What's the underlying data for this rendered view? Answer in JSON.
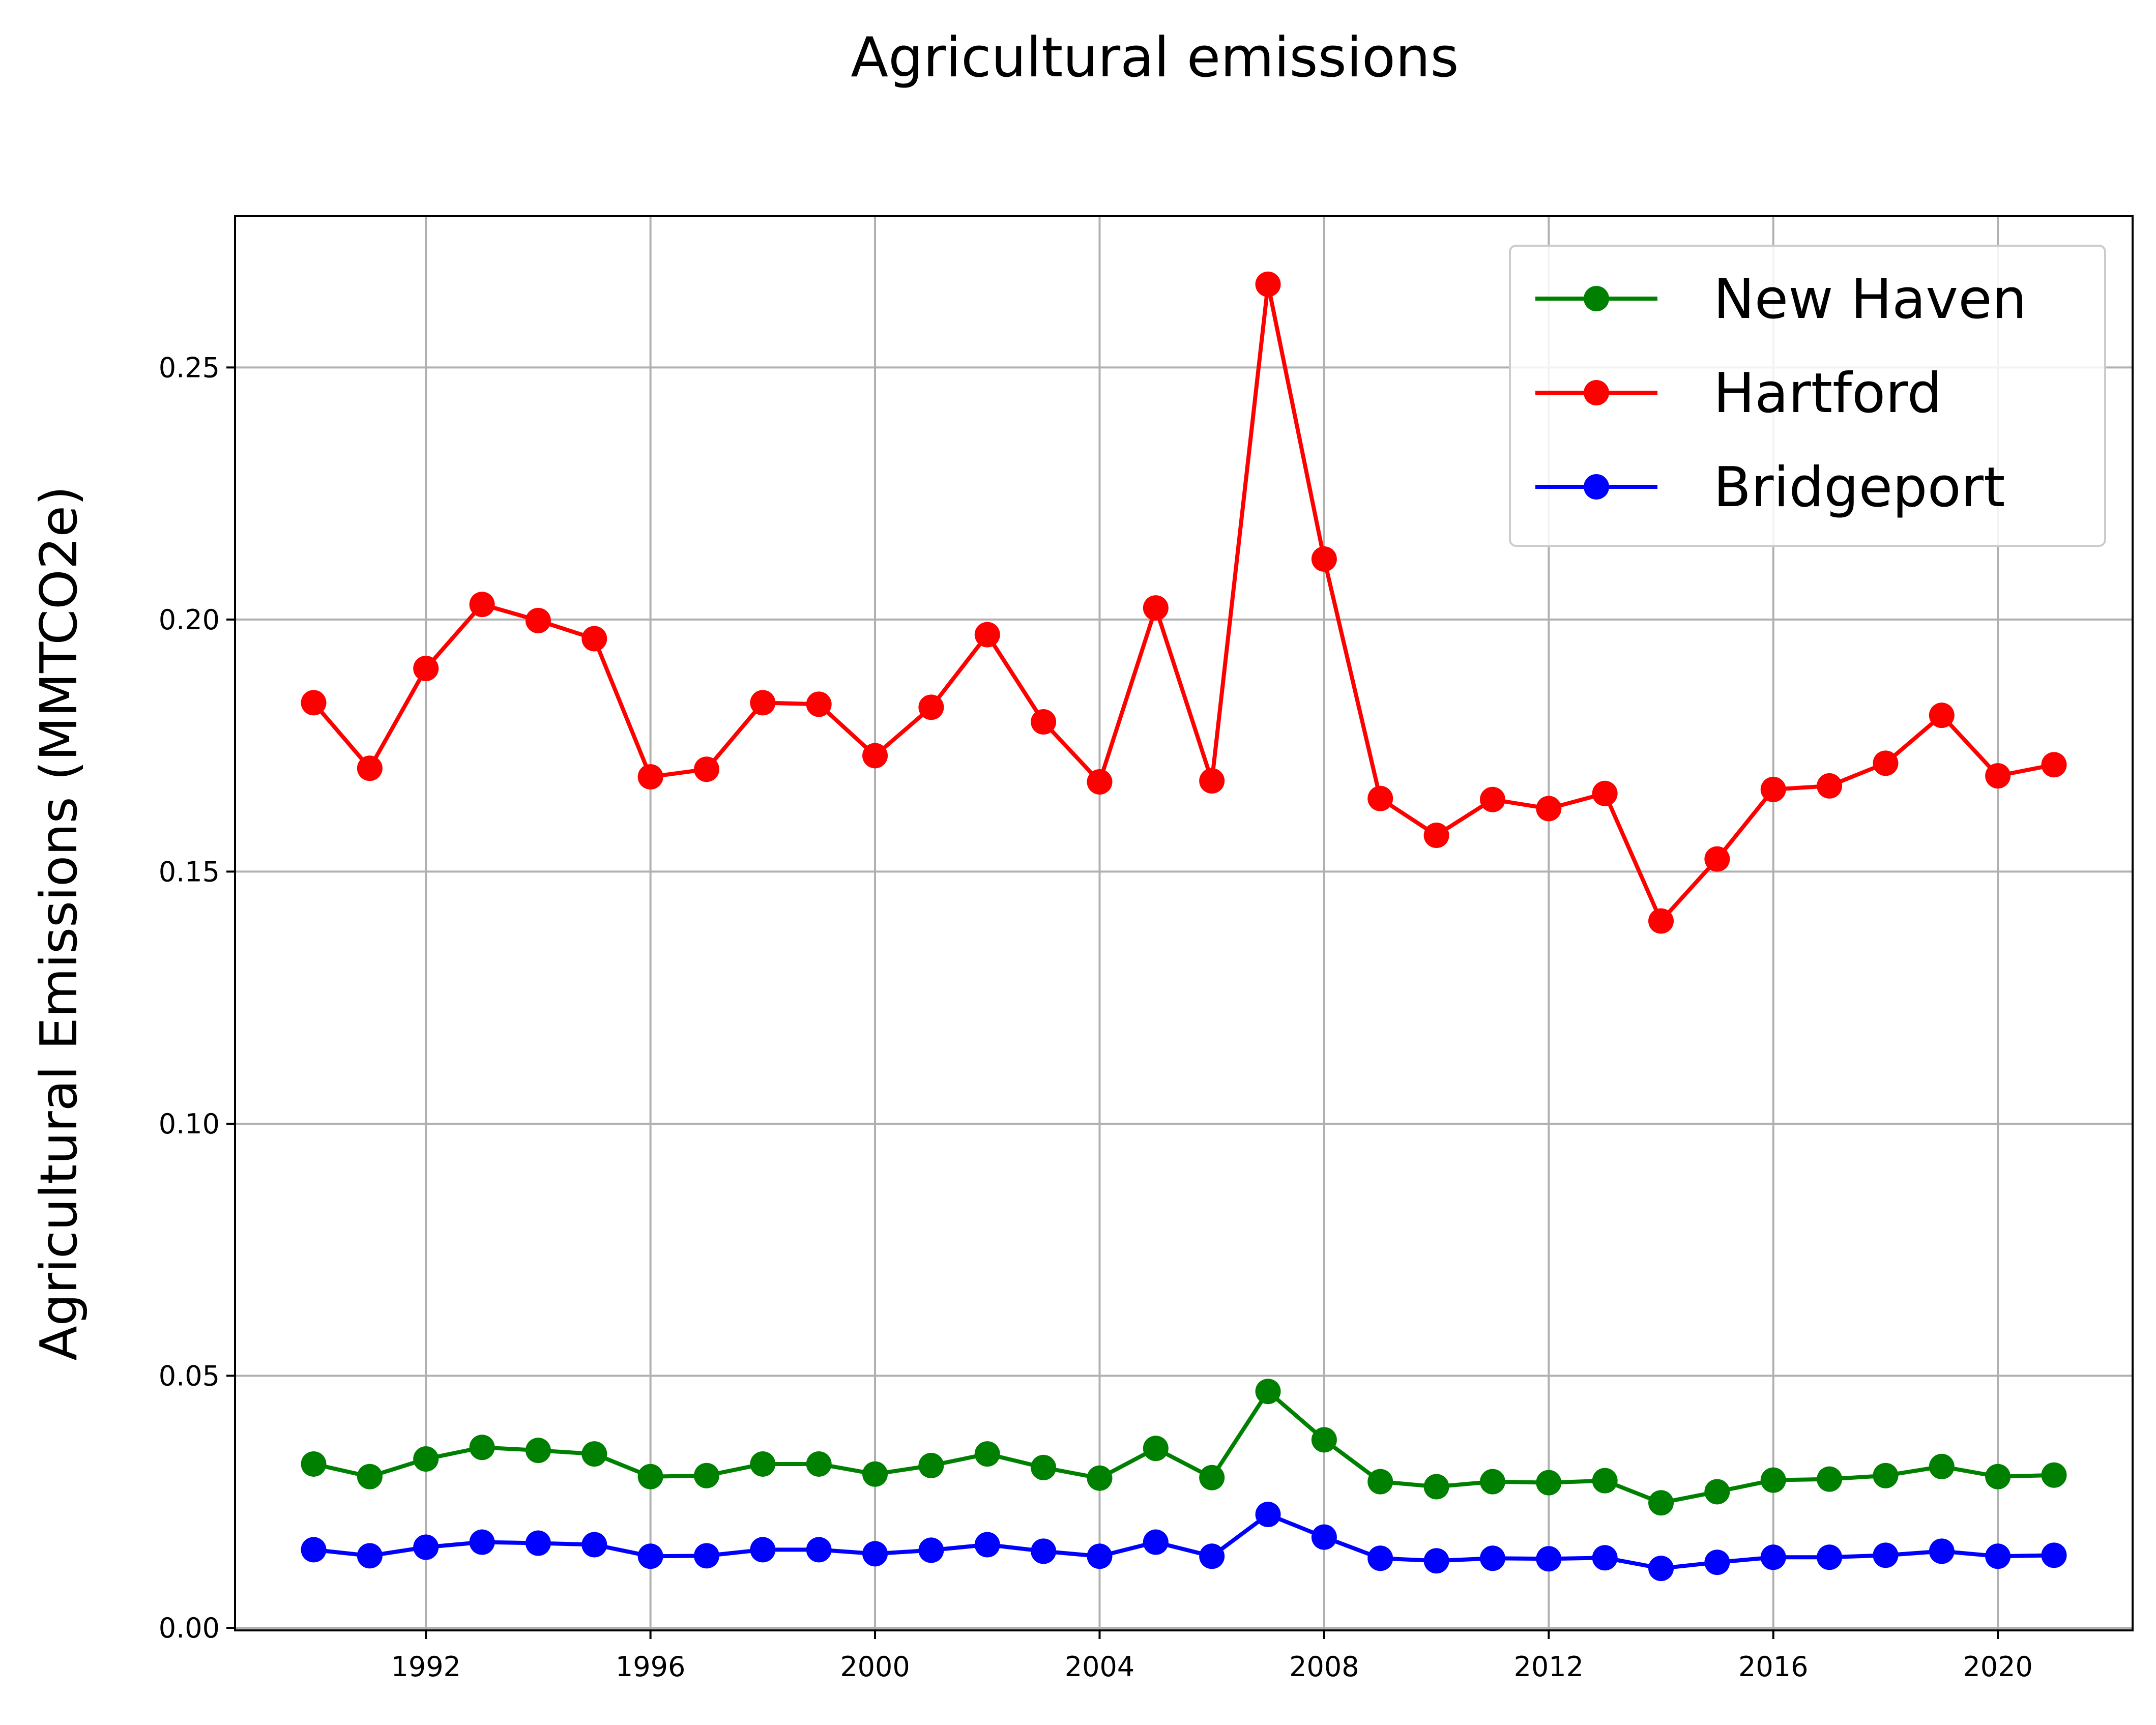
{
  "chart_data": {
    "type": "line",
    "title": "Agricultural emissions",
    "xlabel": "",
    "ylabel": "Agricultural Emissions (MMTCO2e)",
    "xlim": [
      1988.6,
      2022.4
    ],
    "ylim": [
      -0.0005,
      0.28
    ],
    "xticks": [
      1992,
      1996,
      2000,
      2004,
      2008,
      2012,
      2016,
      2020
    ],
    "yticks": [
      0.0,
      0.05,
      0.1,
      0.15,
      0.2,
      0.25
    ],
    "ytick_labels": [
      "0.00",
      "0.05",
      "0.10",
      "0.15",
      "0.20",
      "0.25"
    ],
    "grid": true,
    "legend_position": "upper right",
    "x": [
      1990,
      1991,
      1992,
      1993,
      1994,
      1995,
      1996,
      1997,
      1998,
      1999,
      2000,
      2001,
      2002,
      2003,
      2004,
      2005,
      2006,
      2007,
      2008,
      2009,
      2010,
      2011,
      2012,
      2013,
      2014,
      2015,
      2016,
      2017,
      2018,
      2019,
      2020,
      2021
    ],
    "series": [
      {
        "name": "New Haven",
        "color": "#008000",
        "values": [
          0.0325,
          0.03,
          0.0335,
          0.0358,
          0.0352,
          0.0345,
          0.03,
          0.0302,
          0.0325,
          0.0325,
          0.0305,
          0.0322,
          0.0345,
          0.0318,
          0.0297,
          0.0356,
          0.0298,
          0.0469,
          0.0373,
          0.029,
          0.028,
          0.029,
          0.0288,
          0.0292,
          0.0248,
          0.027,
          0.0293,
          0.0295,
          0.0302,
          0.032,
          0.03,
          0.0303
        ]
      },
      {
        "name": "Hartford",
        "color": "#ff0000",
        "values": [
          0.1835,
          0.1705,
          0.1903,
          0.203,
          0.1998,
          0.1962,
          0.1688,
          0.1703,
          0.1835,
          0.1832,
          0.173,
          0.1826,
          0.197,
          0.1797,
          0.1678,
          0.2023,
          0.168,
          0.2665,
          0.212,
          0.1645,
          0.1572,
          0.1643,
          0.1625,
          0.1655,
          0.1402,
          0.1525,
          0.1663,
          0.167,
          0.1715,
          0.181,
          0.169,
          0.1712
        ]
      },
      {
        "name": "Bridgeport",
        "color": "#0000ff",
        "values": [
          0.0155,
          0.0143,
          0.016,
          0.017,
          0.0168,
          0.0165,
          0.0142,
          0.0143,
          0.0155,
          0.0155,
          0.0147,
          0.0154,
          0.0165,
          0.0152,
          0.0142,
          0.017,
          0.0142,
          0.0225,
          0.018,
          0.0138,
          0.0133,
          0.0138,
          0.0137,
          0.0139,
          0.0118,
          0.013,
          0.014,
          0.014,
          0.0144,
          0.0152,
          0.0142,
          0.0144
        ]
      }
    ]
  }
}
